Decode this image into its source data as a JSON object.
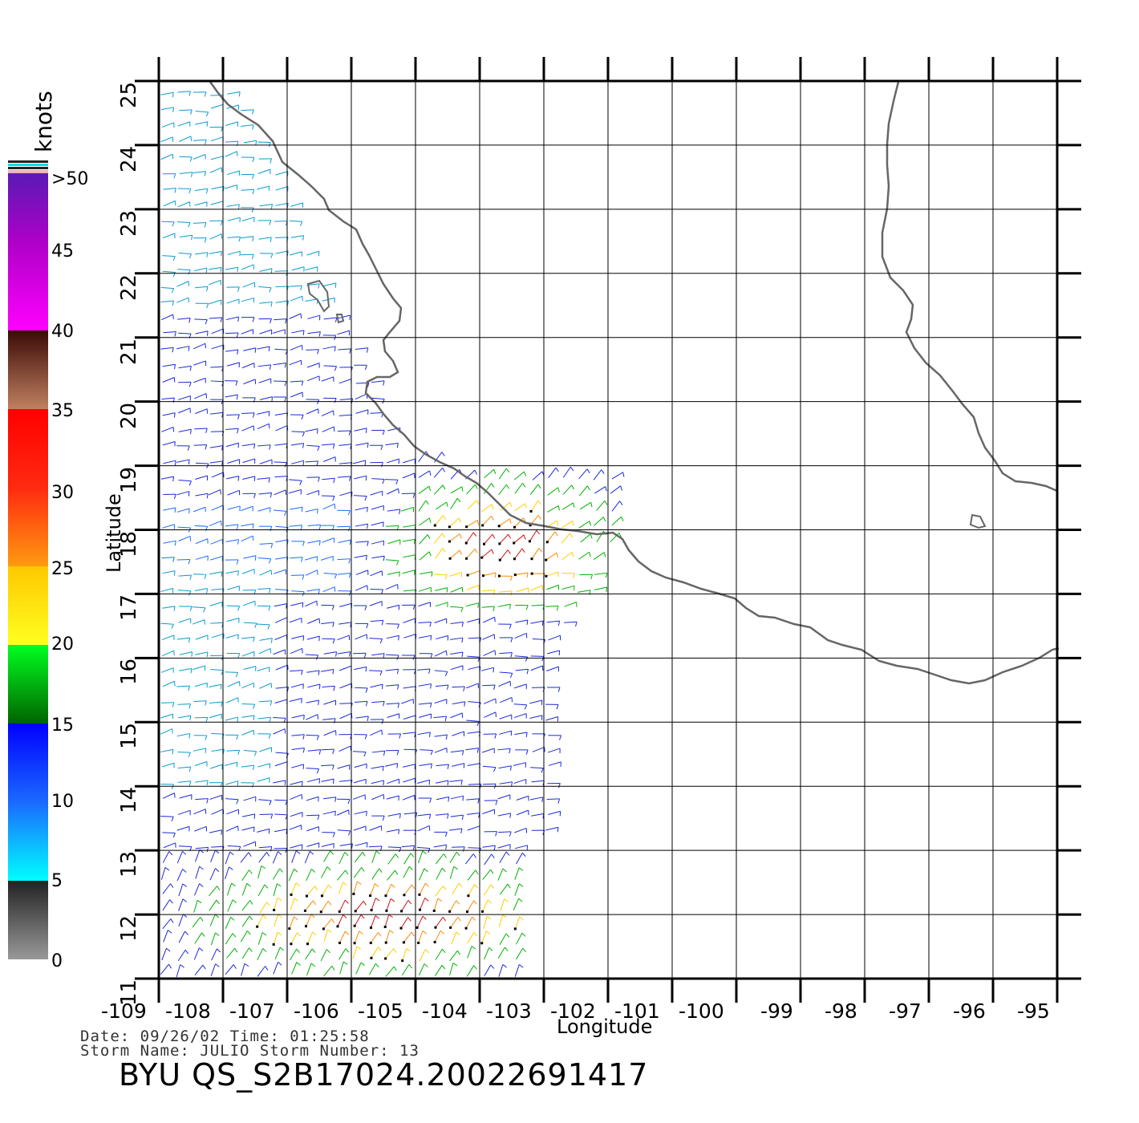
{
  "map": {
    "lon_ticks": [
      "-109",
      "-108",
      "-107",
      "-106",
      "-105",
      "-104",
      "-103",
      "-102",
      "-101",
      "-100",
      "-99",
      "-98",
      "-97",
      "-96",
      "-95"
    ],
    "lat_ticks": [
      "11",
      "12",
      "13",
      "14",
      "15",
      "16",
      "17",
      "18",
      "19",
      "20",
      "21",
      "22",
      "23",
      "24",
      "25"
    ],
    "lon_range": [
      -109,
      -95
    ],
    "lat_range": [
      11,
      25
    ],
    "xlabel": "Longitude",
    "ylabel": "Latitude",
    "grid": true,
    "coast_color": "#666666",
    "grid_color": "#000000"
  },
  "colorbar": {
    "units": "knots",
    "labels": [
      ">50",
      "45",
      "40",
      "35",
      "30",
      "25",
      "20",
      "15",
      "10",
      "5",
      "0"
    ],
    "bands": [
      {
        "range": "40-50",
        "color": "#9a00c8"
      },
      {
        "range": "35-40",
        "color": "#6a2a1a"
      },
      {
        "range": "30-35",
        "color": "#ff1a1a"
      },
      {
        "range": "25-30",
        "color": "#ff6a00"
      },
      {
        "range": "20-25",
        "color": "#ffd700"
      },
      {
        "range": "15-20",
        "color": "#00c800"
      },
      {
        "range": "10-15",
        "color": "#0a14ff"
      },
      {
        "range": "5-10",
        "color": "#00a8ff"
      },
      {
        "range": "0-5",
        "color": "#444444"
      }
    ]
  },
  "info": {
    "date_line": "Date: 09/26/02   Time: 01:25:58",
    "storm_line": "Storm Name: JULIO   Storm Number: 13",
    "title": "BYU QS_S2B17024.20022691417"
  }
}
